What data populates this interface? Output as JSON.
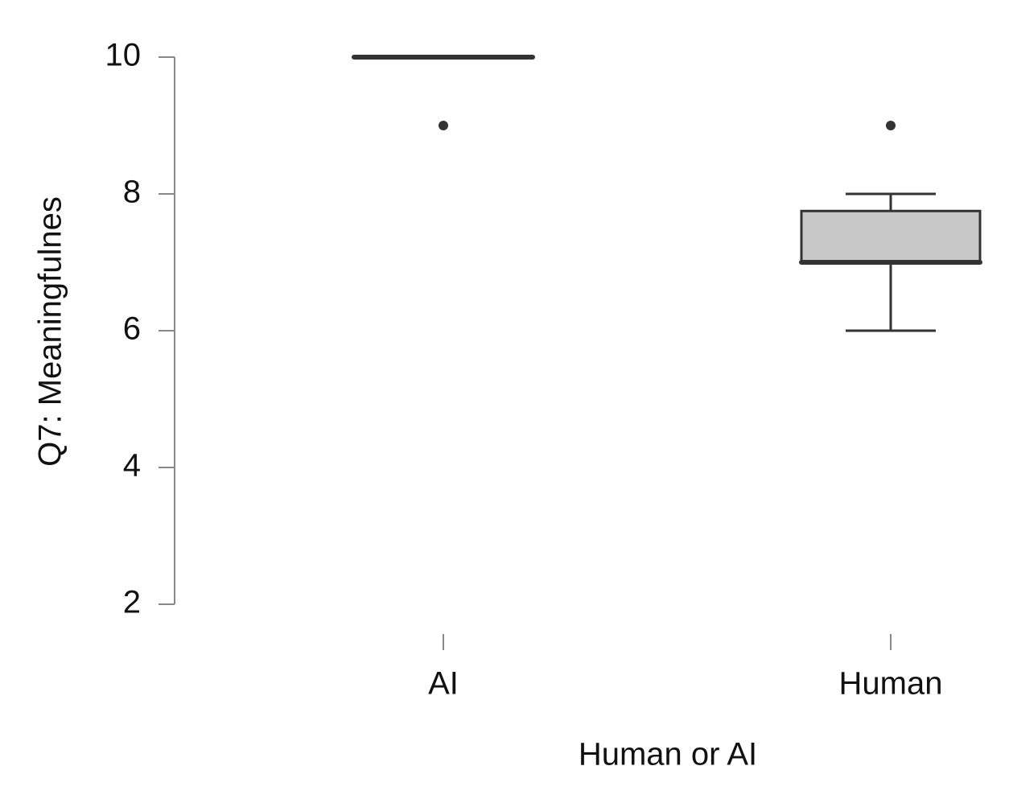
{
  "chart_data": {
    "type": "box",
    "x_label": "Human or AI",
    "y_label": "Q7:  Meaningfulnes",
    "categories": [
      "AI",
      "Human"
    ],
    "boxes": [
      {
        "min": 10,
        "q1": 10,
        "median": 10,
        "q3": 10,
        "max": 10,
        "outliers": [
          9
        ]
      },
      {
        "min": 6,
        "q1": 7,
        "median": 7,
        "q3": 7.75,
        "max": 8,
        "outliers": [
          9
        ]
      }
    ],
    "color": "#c8c8c8",
    "ylim": [
      2,
      10
    ],
    "yticks": [
      2,
      4,
      6,
      8,
      10
    ]
  }
}
